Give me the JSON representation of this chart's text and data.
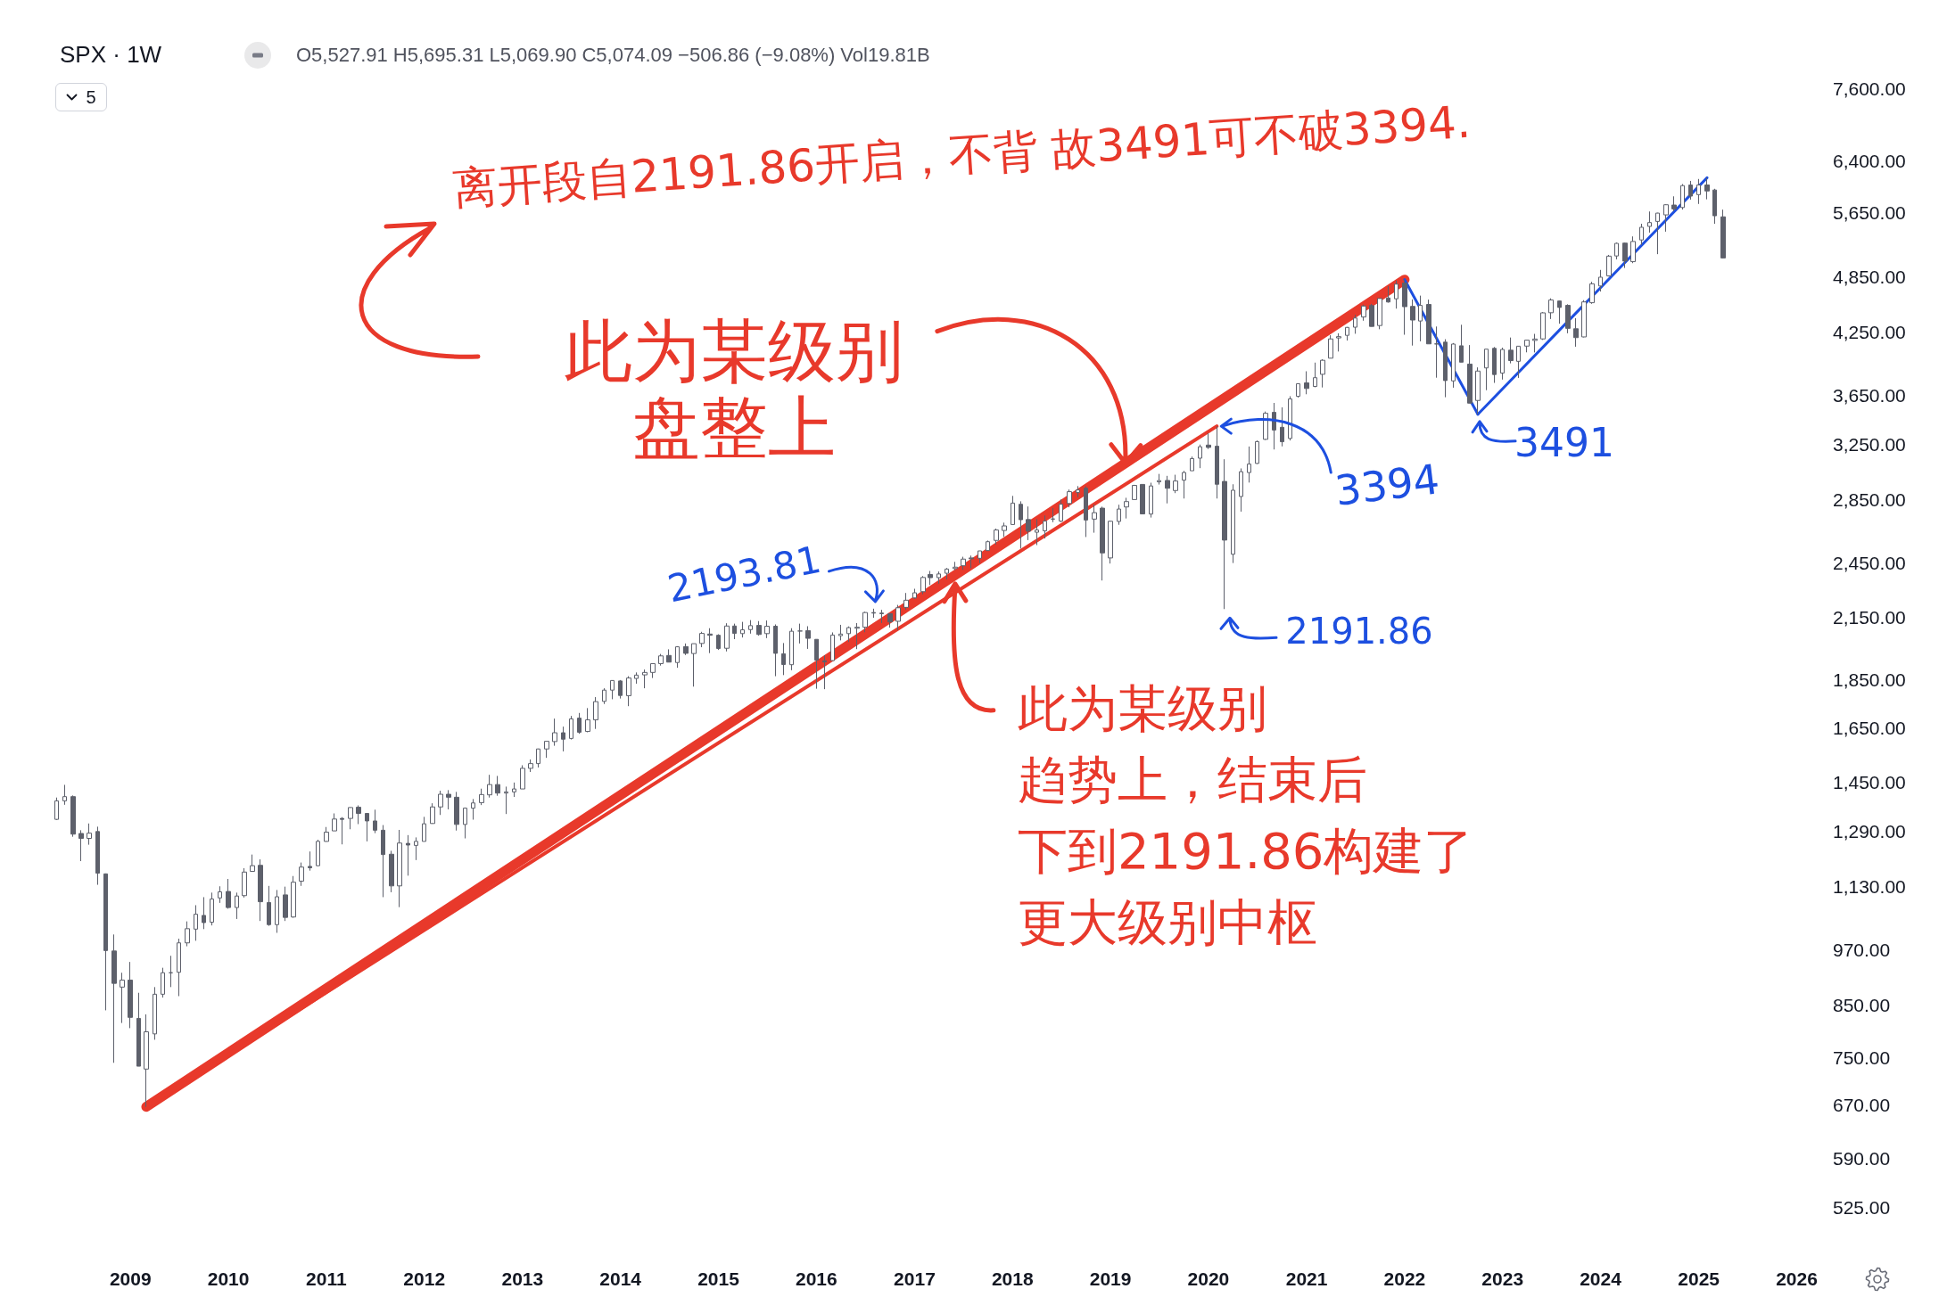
{
  "chart_data": {
    "type": "candlestick",
    "title": "SPX · 1W",
    "subtitle": "O5,527.91 H5,695.31 L5,069.90 C5,074.09 −506.86 (−9.08%) Vol19.81B",
    "annotations": [
      "离开段自2191.86开启，不背 故3491可不破3394.",
      {
        "text": "此为某级别盘整上",
        "x": "2019-03",
        "y": 3180
      },
      {
        "text": "此为某级别趋势上，结束后下到2191.86构建了更大级别中枢",
        "x": "2017-06",
        "y": 2280
      },
      {
        "text": "2193.81",
        "x": "2016-08",
        "y": 2193.81
      },
      {
        "text": "3394",
        "x": "2020-02",
        "y": 3394
      },
      {
        "text": "2191.86",
        "x": "2020-03",
        "y": 2191.86
      },
      {
        "text": "3491",
        "x": "2022-10",
        "y": 3491
      },
      "5"
    ],
    "log": "y",
    "xlim": [
      "2007-09-03",
      "2026"
    ],
    "xticks": [
      "2009",
      "2010",
      "2011",
      "2012",
      "2013",
      "2014",
      "2015",
      "2016",
      "2017",
      "2018",
      "2019",
      "2020",
      "2021",
      "2022",
      "2023",
      "2024",
      "2025",
      "2026"
    ],
    "ylim": [
      525,
      9400
    ],
    "yticks": [
      {
        "value": 525,
        "label": "525.00"
      },
      {
        "value": 590,
        "label": "590.00"
      },
      {
        "value": 670,
        "label": "670.00"
      },
      {
        "value": 750,
        "label": "750.00"
      },
      {
        "value": 850,
        "label": "850.00"
      },
      {
        "value": 970,
        "label": "970.00"
      },
      {
        "value": 1130,
        "label": "1,130.00"
      },
      {
        "value": 1290,
        "label": "1,290.00"
      },
      {
        "value": 1450,
        "label": "1,450.00"
      },
      {
        "value": 1650,
        "label": "1,650.00"
      },
      {
        "value": 1850,
        "label": "1,850.00"
      },
      {
        "value": 2150,
        "label": "2,150.00"
      },
      {
        "value": 2450,
        "label": "2,450.00"
      },
      {
        "value": 2850,
        "label": "2,850.00"
      },
      {
        "value": 3250,
        "label": "3,250.00"
      },
      {
        "value": 3650,
        "label": "3,650.00"
      },
      {
        "value": 4250,
        "label": "4,250.00"
      },
      {
        "value": 4850,
        "label": "4,850.00"
      },
      {
        "value": 5650,
        "label": "5,650.00"
      },
      {
        "value": 6400,
        "label": "6,400.00"
      },
      {
        "value": 7600,
        "label": "7,600.00"
      }
    ],
    "series": [
      {
        "color": "#5d606b",
        "x": [
          "2008-04",
          "2008-05",
          "2008-06",
          "2008-07",
          "2008-08",
          "2008-09",
          "2008-10",
          "2008-11",
          "2008-12",
          "2009-01",
          "2009-02",
          "2009-03",
          "2009-04",
          "2009-05",
          "2009-06",
          "2009-07",
          "2009-08",
          "2009-09",
          "2009-10",
          "2009-11",
          "2009-12",
          "2010-01",
          "2010-02",
          "2010-03",
          "2010-04",
          "2010-05",
          "2010-06",
          "2010-07",
          "2010-08",
          "2010-09",
          "2010-10",
          "2010-11",
          "2010-12",
          "2011-01",
          "2011-02",
          "2011-03",
          "2011-04",
          "2011-05",
          "2011-06",
          "2011-07",
          "2011-08",
          "2011-09",
          "2011-10",
          "2011-11",
          "2011-12",
          "2012-01",
          "2012-02",
          "2012-03",
          "2012-04",
          "2012-05",
          "2012-06",
          "2012-07",
          "2012-08",
          "2012-09",
          "2012-10",
          "2012-11",
          "2012-12",
          "2013-01",
          "2013-02",
          "2013-03",
          "2013-04",
          "2013-05",
          "2013-06",
          "2013-07",
          "2013-08",
          "2013-09",
          "2013-10",
          "2013-11",
          "2013-12",
          "2014-01",
          "2014-02",
          "2014-03",
          "2014-04",
          "2014-05",
          "2014-06",
          "2014-07",
          "2014-08",
          "2014-09",
          "2014-10",
          "2014-11",
          "2014-12",
          "2015-01",
          "2015-02",
          "2015-03",
          "2015-04",
          "2015-05",
          "2015-06",
          "2015-07",
          "2015-08",
          "2015-09",
          "2015-10",
          "2015-11",
          "2015-12",
          "2016-01",
          "2016-02",
          "2016-03",
          "2016-04",
          "2016-05",
          "2016-06",
          "2016-07",
          "2016-08",
          "2016-09",
          "2016-10",
          "2016-11",
          "2016-12",
          "2017-01",
          "2017-02",
          "2017-03",
          "2017-04",
          "2017-05",
          "2017-06",
          "2017-07",
          "2017-08",
          "2017-09",
          "2017-10",
          "2017-11",
          "2017-12",
          "2018-01",
          "2018-02",
          "2018-03",
          "2018-04",
          "2018-05",
          "2018-06",
          "2018-07",
          "2018-08",
          "2018-09",
          "2018-10",
          "2018-11",
          "2018-12",
          "2019-01",
          "2019-02",
          "2019-03",
          "2019-04",
          "2019-05",
          "2019-06",
          "2019-07",
          "2019-08",
          "2019-09",
          "2019-10",
          "2019-11",
          "2019-12",
          "2020-01",
          "2020-02",
          "2020-03",
          "2020-04",
          "2020-05",
          "2020-06",
          "2020-07",
          "2020-08",
          "2020-09",
          "2020-10",
          "2020-11",
          "2020-12",
          "2021-01",
          "2021-02",
          "2021-03",
          "2021-04",
          "2021-05",
          "2021-06",
          "2021-07",
          "2021-08",
          "2021-09",
          "2021-10",
          "2021-11",
          "2021-12",
          "2022-01",
          "2022-02",
          "2022-03",
          "2022-04",
          "2022-05",
          "2022-06",
          "2022-07",
          "2022-08",
          "2022-09",
          "2022-10",
          "2022-11",
          "2022-12",
          "2023-01",
          "2023-02",
          "2023-03",
          "2023-04",
          "2023-05",
          "2023-06",
          "2023-07",
          "2023-08",
          "2023-09",
          "2023-10",
          "2023-11",
          "2023-12",
          "2024-01",
          "2024-02",
          "2024-03",
          "2024-04",
          "2024-05",
          "2024-06",
          "2024-07",
          "2024-08",
          "2024-09",
          "2024-10",
          "2024-11",
          "2024-12",
          "2025-01",
          "2025-02",
          "2025-03",
          "2025-04"
        ],
        "ohlc": [
          [
            1326,
            1397,
            1324,
            1386
          ],
          [
            1386,
            1440,
            1373,
            1400
          ],
          [
            1400,
            1404,
            1272,
            1280
          ],
          [
            1282,
            1292,
            1200,
            1267
          ],
          [
            1267,
            1313,
            1248,
            1283
          ],
          [
            1288,
            1303,
            1134,
            1166
          ],
          [
            1164,
            1165,
            840,
            969
          ],
          [
            968,
            1007,
            741,
            896
          ],
          [
            888,
            919,
            815,
            903
          ],
          [
            903,
            943,
            805,
            826
          ],
          [
            824,
            876,
            735,
            735
          ],
          [
            730,
            832,
            667,
            798
          ],
          [
            794,
            888,
            783,
            873
          ],
          [
            873,
            930,
            866,
            919
          ],
          [
            919,
            957,
            888,
            919
          ],
          [
            920,
            997,
            869,
            987
          ],
          [
            987,
            1039,
            979,
            1021
          ],
          [
            1020,
            1080,
            992,
            1057
          ],
          [
            1054,
            1101,
            1020,
            1036
          ],
          [
            1037,
            1113,
            1029,
            1096
          ],
          [
            1099,
            1130,
            1086,
            1115
          ],
          [
            1116,
            1150,
            1071,
            1074
          ],
          [
            1074,
            1113,
            1045,
            1104
          ],
          [
            1105,
            1180,
            1100,
            1169
          ],
          [
            1171,
            1219,
            1170,
            1187
          ],
          [
            1188,
            1205,
            1040,
            1089
          ],
          [
            1087,
            1131,
            1028,
            1031
          ],
          [
            1031,
            1120,
            1011,
            1102
          ],
          [
            1107,
            1129,
            1040,
            1049
          ],
          [
            1050,
            1158,
            1048,
            1141
          ],
          [
            1144,
            1196,
            1131,
            1183
          ],
          [
            1185,
            1228,
            1173,
            1181
          ],
          [
            1187,
            1263,
            1186,
            1258
          ],
          [
            1258,
            1302,
            1257,
            1286
          ],
          [
            1290,
            1345,
            1290,
            1327
          ],
          [
            1329,
            1333,
            1249,
            1326
          ],
          [
            1329,
            1365,
            1295,
            1364
          ],
          [
            1365,
            1371,
            1311,
            1345
          ],
          [
            1345,
            1346,
            1258,
            1321
          ],
          [
            1321,
            1357,
            1283,
            1292
          ],
          [
            1292,
            1308,
            1101,
            1219
          ],
          [
            1220,
            1230,
            1114,
            1131
          ],
          [
            1131,
            1293,
            1075,
            1253
          ],
          [
            1252,
            1277,
            1159,
            1247
          ],
          [
            1246,
            1270,
            1203,
            1258
          ],
          [
            1258,
            1334,
            1258,
            1312
          ],
          [
            1313,
            1378,
            1312,
            1366
          ],
          [
            1366,
            1420,
            1340,
            1408
          ],
          [
            1408,
            1422,
            1358,
            1398
          ],
          [
            1398,
            1416,
            1291,
            1310
          ],
          [
            1310,
            1364,
            1267,
            1362
          ],
          [
            1362,
            1392,
            1325,
            1379
          ],
          [
            1380,
            1427,
            1372,
            1407
          ],
          [
            1406,
            1475,
            1397,
            1441
          ],
          [
            1441,
            1471,
            1403,
            1412
          ],
          [
            1412,
            1434,
            1343,
            1416
          ],
          [
            1416,
            1448,
            1399,
            1426
          ],
          [
            1426,
            1509,
            1426,
            1498
          ],
          [
            1498,
            1530,
            1485,
            1515
          ],
          [
            1515,
            1570,
            1501,
            1569
          ],
          [
            1569,
            1598,
            1536,
            1598
          ],
          [
            1597,
            1687,
            1581,
            1631
          ],
          [
            1631,
            1655,
            1560,
            1606
          ],
          [
            1609,
            1698,
            1605,
            1686
          ],
          [
            1689,
            1710,
            1627,
            1633
          ],
          [
            1636,
            1730,
            1633,
            1682
          ],
          [
            1682,
            1776,
            1646,
            1757
          ],
          [
            1758,
            1814,
            1747,
            1806
          ],
          [
            1806,
            1849,
            1767,
            1848
          ],
          [
            1846,
            1850,
            1770,
            1783
          ],
          [
            1782,
            1867,
            1738,
            1859
          ],
          [
            1857,
            1884,
            1834,
            1872
          ],
          [
            1873,
            1897,
            1814,
            1884
          ],
          [
            1884,
            1924,
            1859,
            1924
          ],
          [
            1924,
            1969,
            1915,
            1960
          ],
          [
            1962,
            1991,
            1930,
            1931
          ],
          [
            1929,
            2006,
            1905,
            2003
          ],
          [
            2004,
            2019,
            1964,
            1972
          ],
          [
            1971,
            2018,
            1821,
            2018
          ],
          [
            2019,
            2076,
            2001,
            2068
          ],
          [
            2065,
            2094,
            1973,
            2059
          ],
          [
            2059,
            2064,
            1988,
            1995
          ],
          [
            1996,
            2119,
            1981,
            2105
          ],
          [
            2105,
            2117,
            2040,
            2068
          ],
          [
            2067,
            2126,
            2048,
            2086
          ],
          [
            2087,
            2135,
            2067,
            2107
          ],
          [
            2108,
            2130,
            2057,
            2063
          ],
          [
            2067,
            2133,
            2045,
            2104
          ],
          [
            2104,
            2113,
            1867,
            1972
          ],
          [
            1970,
            2021,
            1872,
            1920
          ],
          [
            1919,
            2094,
            1894,
            2079
          ],
          [
            2080,
            2117,
            2019,
            2080
          ],
          [
            2082,
            2104,
            1993,
            2044
          ],
          [
            2039,
            2039,
            1812,
            1940
          ],
          [
            1937,
            1963,
            1810,
            1932
          ],
          [
            1938,
            2073,
            1937,
            2060
          ],
          [
            2057,
            2111,
            2034,
            2065
          ],
          [
            2067,
            2103,
            2026,
            2097
          ],
          [
            2094,
            2120,
            1992,
            2099
          ],
          [
            2099,
            2178,
            2074,
            2174
          ],
          [
            2174,
            2194,
            2147,
            2171
          ],
          [
            2171,
            2188,
            2120,
            2168
          ],
          [
            2168,
            2169,
            2097,
            2126
          ],
          [
            2129,
            2214,
            2084,
            2199
          ],
          [
            2201,
            2278,
            2188,
            2239
          ],
          [
            2251,
            2301,
            2246,
            2279
          ],
          [
            2285,
            2372,
            2271,
            2364
          ],
          [
            2381,
            2401,
            2322,
            2363
          ],
          [
            2363,
            2398,
            2329,
            2384
          ],
          [
            2388,
            2418,
            2353,
            2412
          ],
          [
            2415,
            2454,
            2405,
            2423
          ],
          [
            2431,
            2484,
            2408,
            2470
          ],
          [
            2477,
            2491,
            2417,
            2472
          ],
          [
            2475,
            2519,
            2446,
            2519
          ],
          [
            2521,
            2582,
            2520,
            2575
          ],
          [
            2583,
            2657,
            2557,
            2648
          ],
          [
            2645,
            2695,
            2605,
            2674
          ],
          [
            2683,
            2873,
            2682,
            2824
          ],
          [
            2816,
            2836,
            2533,
            2714
          ],
          [
            2715,
            2801,
            2585,
            2641
          ],
          [
            2634,
            2718,
            2554,
            2648
          ],
          [
            2643,
            2742,
            2595,
            2705
          ],
          [
            2719,
            2791,
            2698,
            2718
          ],
          [
            2705,
            2848,
            2699,
            2816
          ],
          [
            2821,
            2917,
            2796,
            2902
          ],
          [
            2897,
            2941,
            2864,
            2914
          ],
          [
            2926,
            2940,
            2604,
            2712
          ],
          [
            2718,
            2815,
            2631,
            2760
          ],
          [
            2790,
            2800,
            2347,
            2507
          ],
          [
            2477,
            2708,
            2444,
            2704
          ],
          [
            2703,
            2813,
            2681,
            2784
          ],
          [
            2798,
            2860,
            2722,
            2834
          ],
          [
            2848,
            2950,
            2848,
            2946
          ],
          [
            2953,
            2954,
            2751,
            2752
          ],
          [
            2751,
            2965,
            2728,
            2942
          ],
          [
            2971,
            3028,
            2952,
            2980
          ],
          [
            2981,
            3014,
            2822,
            2926
          ],
          [
            2910,
            3022,
            2892,
            2977
          ],
          [
            2983,
            3050,
            2855,
            3038
          ],
          [
            3051,
            3156,
            3051,
            3141
          ],
          [
            3144,
            3248,
            3070,
            3231
          ],
          [
            3244,
            3338,
            3214,
            3226
          ],
          [
            3235,
            3394,
            2855,
            2954
          ],
          [
            2974,
            3136,
            2192,
            2585
          ],
          [
            2499,
            2954,
            2447,
            2912
          ],
          [
            2869,
            3068,
            2767,
            3044
          ],
          [
            3038,
            3233,
            2966,
            3100
          ],
          [
            3105,
            3280,
            3101,
            3271
          ],
          [
            3289,
            3515,
            3284,
            3500
          ],
          [
            3508,
            3588,
            3210,
            3363
          ],
          [
            3385,
            3550,
            3234,
            3270
          ],
          [
            3296,
            3646,
            3280,
            3622
          ],
          [
            3645,
            3760,
            3634,
            3756
          ],
          [
            3764,
            3870,
            3663,
            3714
          ],
          [
            3732,
            3951,
            3725,
            3811
          ],
          [
            3842,
            3983,
            3723,
            3973
          ],
          [
            3993,
            4218,
            3992,
            4181
          ],
          [
            4191,
            4238,
            4057,
            4204
          ],
          [
            4217,
            4302,
            4165,
            4298
          ],
          [
            4300,
            4429,
            4233,
            4395
          ],
          [
            4406,
            4538,
            4367,
            4523
          ],
          [
            4528,
            4546,
            4306,
            4308
          ],
          [
            4317,
            4608,
            4279,
            4605
          ],
          [
            4611,
            4744,
            4560,
            4567
          ],
          [
            4602,
            4808,
            4495,
            4766
          ],
          [
            4778,
            4818,
            4223,
            4516
          ],
          [
            4519,
            4595,
            4115,
            4374
          ],
          [
            4364,
            4637,
            4157,
            4530
          ],
          [
            4540,
            4593,
            4132,
            4132
          ],
          [
            4131,
            4307,
            3811,
            4132
          ],
          [
            4149,
            4178,
            3637,
            3785
          ],
          [
            3782,
            4140,
            3721,
            4130
          ],
          [
            4113,
            4325,
            3955,
            3955
          ],
          [
            3937,
            4120,
            3585,
            3586
          ],
          [
            3609,
            3906,
            3492,
            3872
          ],
          [
            3901,
            4080,
            3699,
            4080
          ],
          [
            4088,
            4101,
            3764,
            3840
          ],
          [
            3853,
            4095,
            3794,
            4077
          ],
          [
            4070,
            4195,
            3944,
            3970
          ],
          [
            3963,
            4110,
            3809,
            4109
          ],
          [
            4110,
            4170,
            4049,
            4169
          ],
          [
            4166,
            4232,
            4048,
            4180
          ],
          [
            4181,
            4458,
            4171,
            4450
          ],
          [
            4451,
            4607,
            4385,
            4589
          ],
          [
            4578,
            4584,
            4336,
            4508
          ],
          [
            4530,
            4542,
            4238,
            4288
          ],
          [
            4284,
            4393,
            4104,
            4194
          ],
          [
            4201,
            4587,
            4197,
            4568
          ],
          [
            4559,
            4793,
            4547,
            4770
          ],
          [
            4745,
            4931,
            4683,
            4846
          ],
          [
            4861,
            5111,
            4854,
            5096
          ],
          [
            5098,
            5264,
            5057,
            5254
          ],
          [
            5257,
            5264,
            4954,
            5036
          ],
          [
            5029,
            5342,
            5011,
            5278
          ],
          [
            5297,
            5506,
            5234,
            5460
          ],
          [
            5471,
            5670,
            5391,
            5522
          ],
          [
            5537,
            5652,
            5120,
            5648
          ],
          [
            5624,
            5768,
            5403,
            5762
          ],
          [
            5758,
            5879,
            5674,
            5705
          ],
          [
            5724,
            6054,
            5696,
            6032
          ],
          [
            6040,
            6100,
            5833,
            5882
          ],
          [
            5903,
            6128,
            5773,
            6041
          ],
          [
            6041,
            6147,
            5837,
            5955
          ],
          [
            5969,
            5986,
            5505,
            5612
          ],
          [
            5598,
            5695,
            5070,
            5074
          ]
        ]
      },
      {
        "type": "line",
        "color": "#e8392b",
        "x": [
          "2009-03",
          "2022-01"
        ],
        "values": [
          667,
          4818
        ]
      },
      {
        "type": "line",
        "color": "#e8392b",
        "x": [
          "2009-03",
          "2020-02"
        ],
        "values": [
          667,
          3394
        ]
      },
      {
        "type": "line",
        "color": "#1d4fe0",
        "x": [
          "2022-01",
          "2022-10"
        ],
        "values": [
          4818,
          3492
        ]
      },
      {
        "type": "line",
        "color": "#1d4fe0",
        "x": [
          "2022-10",
          "2025-02"
        ],
        "values": [
          3492,
          6147
        ]
      }
    ]
  }
}
